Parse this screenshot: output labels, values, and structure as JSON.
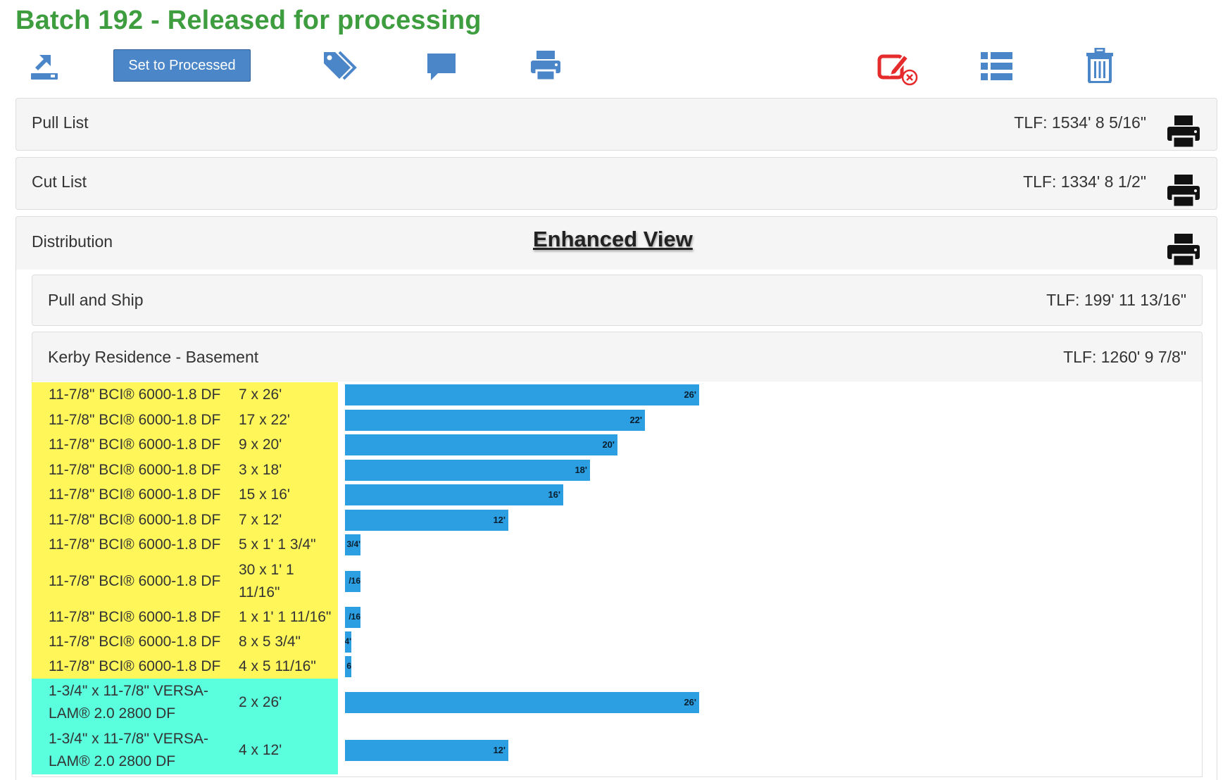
{
  "header": {
    "title": "Batch 192 - Released for processing"
  },
  "toolbar": {
    "set_processed_label": "Set to Processed",
    "icons": [
      "unrelease-icon",
      "tag-icon",
      "comment-icon",
      "print-icon",
      "edit-remove-icon",
      "list-icon",
      "trash-icon"
    ]
  },
  "colors": {
    "title": "#3e9d3f",
    "icon_blue": "#4a86c8",
    "icon_red": "#e52b2b",
    "bar": "#2b9fe2",
    "yellow_rows": "#fff75a",
    "cyan_rows": "#5affdd"
  },
  "panels": {
    "pull_list": {
      "label": "Pull List",
      "tlf": "TLF: 1534' 8 5/16\""
    },
    "cut_list": {
      "label": "Cut List",
      "tlf": "TLF: 1334' 8 1/2\""
    },
    "distribution": {
      "label": "Distribution",
      "enhanced_view": "Enhanced View",
      "pull_and_ship": {
        "label": "Pull and Ship",
        "tlf": "TLF: 199' 11 13/16\""
      },
      "kerby": {
        "label": "Kerby Residence - Basement",
        "tlf": "TLF: 1260' 9 7/8\""
      }
    }
  },
  "rows": [
    {
      "name": "11-7/8\" BCI® 6000-1.8 DF",
      "qty": "7 x 26'",
      "bar_label": "26'",
      "length_ft": 26,
      "group": "yellow"
    },
    {
      "name": "11-7/8\" BCI® 6000-1.8 DF",
      "qty": "17 x 22'",
      "bar_label": "22'",
      "length_ft": 22,
      "group": "yellow"
    },
    {
      "name": "11-7/8\" BCI® 6000-1.8 DF",
      "qty": "9 x 20'",
      "bar_label": "20'",
      "length_ft": 20,
      "group": "yellow"
    },
    {
      "name": "11-7/8\" BCI® 6000-1.8 DF",
      "qty": "3 x 18'",
      "bar_label": "18'",
      "length_ft": 18,
      "group": "yellow"
    },
    {
      "name": "11-7/8\" BCI® 6000-1.8 DF",
      "qty": "15 x 16'",
      "bar_label": "16'",
      "length_ft": 16,
      "group": "yellow"
    },
    {
      "name": "11-7/8\" BCI® 6000-1.8 DF",
      "qty": "7 x 12'",
      "bar_label": "12'",
      "length_ft": 12,
      "group": "yellow"
    },
    {
      "name": "11-7/8\" BCI® 6000-1.8 DF",
      "qty": "5 x 1' 1 3/4\"",
      "bar_label": "3/4'",
      "length_ft": 1.15,
      "group": "yellow"
    },
    {
      "name": "11-7/8\" BCI® 6000-1.8 DF",
      "qty": "30 x 1' 1 11/16\"",
      "bar_label": "/16",
      "length_ft": 1.14,
      "group": "yellow"
    },
    {
      "name": "11-7/8\" BCI® 6000-1.8 DF",
      "qty": "1 x 1' 1 11/16\"",
      "bar_label": "/16",
      "length_ft": 1.14,
      "group": "yellow"
    },
    {
      "name": "11-7/8\" BCI® 6000-1.8 DF",
      "qty": "8 x 5 3/4\"",
      "bar_label": "4'",
      "length_ft": 0.48,
      "group": "yellow"
    },
    {
      "name": "11-7/8\" BCI® 6000-1.8 DF",
      "qty": "4 x 5 11/16\"",
      "bar_label": "6",
      "length_ft": 0.47,
      "group": "yellow"
    },
    {
      "name": "1-3/4\" x 11-7/8\" VERSA-LAM® 2.0 2800 DF",
      "qty": "2 x 26'",
      "bar_label": "26'",
      "length_ft": 26,
      "group": "cyan"
    },
    {
      "name": "1-3/4\" x 11-7/8\" VERSA-LAM® 2.0 2800 DF",
      "qty": "4 x 12'",
      "bar_label": "12'",
      "length_ft": 12,
      "group": "cyan"
    }
  ]
}
